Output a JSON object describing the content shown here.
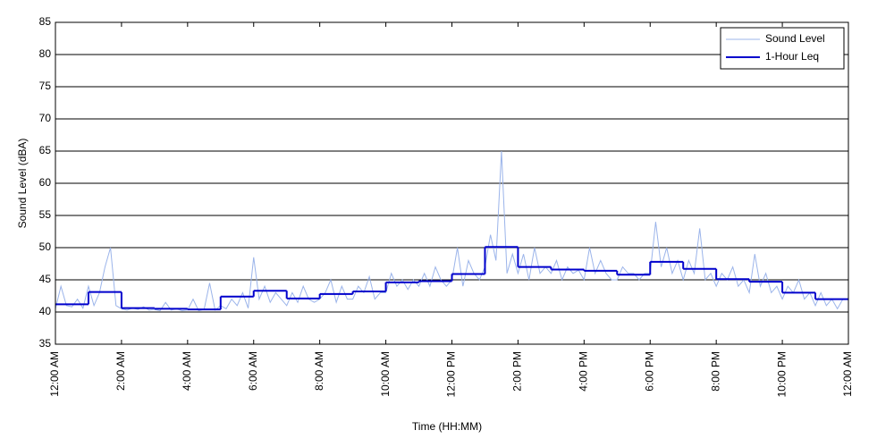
{
  "chart_data": {
    "type": "line",
    "x_label": "Time (HH:MM)",
    "y_label": "Sound Level (dBA)",
    "xlim": [
      0,
      1440
    ],
    "ylim": [
      35,
      85
    ],
    "xticks": [
      {
        "value": 0,
        "label": "12:00 AM"
      },
      {
        "value": 120,
        "label": "2:00 AM"
      },
      {
        "value": 240,
        "label": "4:00 AM"
      },
      {
        "value": 360,
        "label": "6:00 AM"
      },
      {
        "value": 480,
        "label": "8:00 AM"
      },
      {
        "value": 600,
        "label": "10:00 AM"
      },
      {
        "value": 720,
        "label": "12:00 PM"
      },
      {
        "value": 840,
        "label": "2:00 PM"
      },
      {
        "value": 960,
        "label": "4:00 PM"
      },
      {
        "value": 1080,
        "label": "6:00 PM"
      },
      {
        "value": 1200,
        "label": "8:00 PM"
      },
      {
        "value": 1320,
        "label": "10:00 PM"
      },
      {
        "value": 1440,
        "label": "12:00 AM"
      }
    ],
    "yticks": [
      35,
      40,
      45,
      50,
      55,
      60,
      65,
      70,
      75,
      80,
      85
    ],
    "grid": true,
    "legend": "upper right",
    "series": [
      {
        "name": "Sound Level",
        "color": "#9bb4ea",
        "step": false,
        "x": [
          0,
          10,
          20,
          30,
          40,
          50,
          60,
          70,
          80,
          90,
          100,
          110,
          120,
          130,
          140,
          150,
          160,
          170,
          180,
          190,
          200,
          210,
          220,
          230,
          240,
          250,
          260,
          270,
          280,
          290,
          300,
          310,
          320,
          330,
          340,
          350,
          360,
          370,
          380,
          390,
          400,
          410,
          420,
          430,
          440,
          450,
          460,
          470,
          480,
          490,
          500,
          510,
          520,
          530,
          540,
          550,
          560,
          570,
          580,
          590,
          600,
          610,
          620,
          630,
          640,
          650,
          660,
          670,
          680,
          690,
          700,
          710,
          720,
          730,
          740,
          750,
          760,
          770,
          780,
          790,
          800,
          810,
          820,
          830,
          840,
          850,
          860,
          870,
          880,
          890,
          900,
          910,
          920,
          930,
          940,
          950,
          960,
          970,
          980,
          990,
          1000,
          1010,
          1020,
          1030,
          1040,
          1050,
          1060,
          1070,
          1080,
          1090,
          1100,
          1110,
          1120,
          1130,
          1140,
          1150,
          1160,
          1170,
          1180,
          1190,
          1200,
          1210,
          1220,
          1230,
          1240,
          1250,
          1260,
          1270,
          1280,
          1290,
          1300,
          1310,
          1320,
          1330,
          1340,
          1350,
          1360,
          1370,
          1380,
          1390,
          1400,
          1410,
          1420,
          1430,
          1440
        ],
        "values": [
          40.5,
          44,
          41,
          40.8,
          42,
          40.6,
          44,
          41,
          43,
          47,
          50,
          41,
          40.5,
          40.3,
          40.6,
          40.4,
          40.8,
          40.3,
          40.4,
          40.2,
          41.5,
          40.3,
          40.5,
          40.2,
          40.3,
          42,
          40.2,
          40.4,
          44.5,
          40.3,
          41,
          40.5,
          42,
          41,
          43,
          40.6,
          48.5,
          42,
          44,
          41.5,
          43,
          42,
          41,
          43,
          41.5,
          44,
          42,
          41.5,
          42,
          43,
          45,
          41.5,
          44,
          42,
          42,
          44,
          43,
          45.5,
          42,
          43,
          43,
          46,
          44,
          45,
          43.5,
          45,
          44,
          46,
          44,
          47,
          45,
          44,
          45,
          50,
          44,
          48,
          46,
          45,
          47,
          52,
          48,
          65,
          46,
          49,
          46,
          49,
          45,
          50,
          46,
          47,
          46,
          48,
          45,
          47,
          46,
          46.5,
          45,
          50,
          46,
          48,
          46,
          45,
          45,
          47,
          46,
          46,
          45,
          46,
          46,
          54,
          47,
          50,
          46,
          48,
          45,
          48,
          46,
          53,
          45,
          46,
          44,
          46,
          45,
          47,
          44,
          45,
          43,
          49,
          44,
          46,
          43,
          44,
          42,
          44,
          43,
          45,
          42,
          43,
          41,
          43,
          41,
          42,
          40.5,
          42,
          42
        ]
      },
      {
        "name": "1-Hour Leq",
        "color": "#0000cc",
        "step": true,
        "x": [
          0,
          60,
          120,
          180,
          240,
          300,
          360,
          420,
          480,
          540,
          600,
          660,
          720,
          780,
          840,
          900,
          960,
          1020,
          1080,
          1140,
          1200,
          1260,
          1320,
          1380
        ],
        "values": [
          41.2,
          43.1,
          40.6,
          40.5,
          40.4,
          42.4,
          43.3,
          42.1,
          42.8,
          43.2,
          44.6,
          44.8,
          45.9,
          50.1,
          47.0,
          46.6,
          46.4,
          45.8,
          47.8,
          46.7,
          45.1,
          44.7,
          43.0,
          42.0
        ]
      }
    ]
  }
}
